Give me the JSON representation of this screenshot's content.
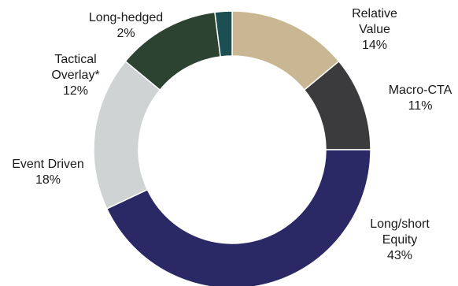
{
  "chart_data": {
    "type": "pie",
    "donut": true,
    "title": "",
    "slices": [
      {
        "label": "Relative Value",
        "label_lines": [
          "Relative",
          "Value"
        ],
        "value": 14,
        "value_text": "14%",
        "color": "#c8b792"
      },
      {
        "label": "Macro-CTA",
        "label_lines": [
          "Macro-CTA"
        ],
        "value": 11,
        "value_text": "11%",
        "color": "#3b3a3c"
      },
      {
        "label": "Long/short Equity",
        "label_lines": [
          "Long/short",
          "Equity"
        ],
        "value": 43,
        "value_text": "43%",
        "color": "#2b2866"
      },
      {
        "label": "Event Driven",
        "label_lines": [
          "Event Driven"
        ],
        "value": 18,
        "value_text": "18%",
        "color": "#cfd3d4"
      },
      {
        "label": "Tactical Overlay*",
        "label_lines": [
          "Tactical",
          "Overlay*"
        ],
        "value": 12,
        "value_text": "12%",
        "color": "#2c4332"
      },
      {
        "label": "Long-hedged",
        "label_lines": [
          "Long-hedged"
        ],
        "value": 2,
        "value_text": "2%",
        "color": "#1b4f52"
      }
    ]
  }
}
